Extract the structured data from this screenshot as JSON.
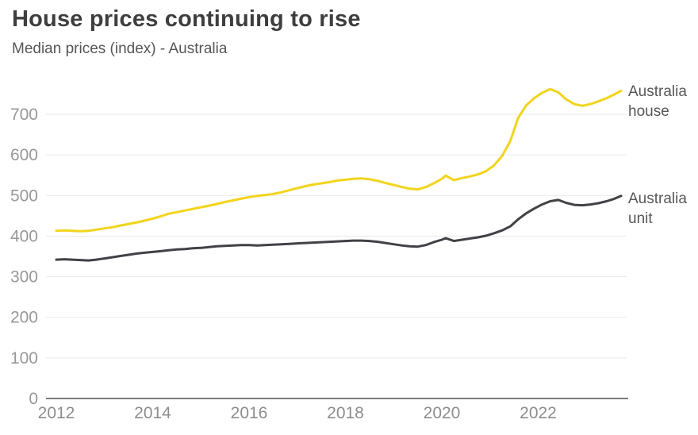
{
  "header": {
    "title": "House prices continuing to rise",
    "subtitle": "Median prices (index) - Australia"
  },
  "colors": {
    "title_text": "#3e3e40",
    "subtitle_text": "#565658",
    "grid_line": "#e9e9e9",
    "baseline": "#7d7d7d",
    "y_tick_text": "#989898",
    "x_tick_text": "#8d8d8d",
    "legend_text": "#58585a",
    "house_line": "#f2d41c",
    "unit_line": "#414246"
  },
  "chart_data": {
    "type": "line",
    "title": "House prices continuing to rise",
    "subtitle": "Median prices (index) - Australia",
    "xlabel": "",
    "ylabel": "Median price index",
    "grid": "horizontal",
    "legend_position": "right of line ends",
    "xlim": [
      2012,
      2023.85
    ],
    "ylim": [
      0,
      780
    ],
    "x_ticks": [
      2012,
      2014,
      2016,
      2018,
      2020,
      2022
    ],
    "y_ticks": [
      0,
      100,
      200,
      300,
      400,
      500,
      600,
      700
    ],
    "series": [
      {
        "name": "Australia house",
        "color": "#f2d41c",
        "points": [
          [
            2012,
            413
          ],
          [
            2012.17,
            414
          ],
          [
            2012.33,
            413
          ],
          [
            2012.5,
            412
          ],
          [
            2012.67,
            413
          ],
          [
            2012.83,
            416
          ],
          [
            2013,
            419
          ],
          [
            2013.17,
            422
          ],
          [
            2013.33,
            426
          ],
          [
            2013.5,
            430
          ],
          [
            2013.67,
            434
          ],
          [
            2013.83,
            438
          ],
          [
            2014,
            443
          ],
          [
            2014.17,
            449
          ],
          [
            2014.33,
            455
          ],
          [
            2014.5,
            459
          ],
          [
            2014.67,
            463
          ],
          [
            2014.83,
            467
          ],
          [
            2015,
            471
          ],
          [
            2015.17,
            475
          ],
          [
            2015.33,
            479
          ],
          [
            2015.5,
            484
          ],
          [
            2015.67,
            488
          ],
          [
            2015.83,
            492
          ],
          [
            2016,
            496
          ],
          [
            2016.17,
            499
          ],
          [
            2016.33,
            501
          ],
          [
            2016.5,
            504
          ],
          [
            2016.67,
            508
          ],
          [
            2016.83,
            513
          ],
          [
            2017,
            518
          ],
          [
            2017.17,
            523
          ],
          [
            2017.33,
            527
          ],
          [
            2017.5,
            530
          ],
          [
            2017.67,
            533
          ],
          [
            2017.83,
            537
          ],
          [
            2018,
            539
          ],
          [
            2018.17,
            541
          ],
          [
            2018.33,
            542
          ],
          [
            2018.5,
            540
          ],
          [
            2018.67,
            536
          ],
          [
            2018.83,
            531
          ],
          [
            2019,
            526
          ],
          [
            2019.17,
            521
          ],
          [
            2019.33,
            517
          ],
          [
            2019.5,
            515
          ],
          [
            2019.67,
            521
          ],
          [
            2019.83,
            530
          ],
          [
            2020,
            541
          ],
          [
            2020.08,
            549
          ],
          [
            2020.25,
            538
          ],
          [
            2020.42,
            543
          ],
          [
            2020.58,
            547
          ],
          [
            2020.75,
            552
          ],
          [
            2020.92,
            560
          ],
          [
            2021.08,
            574
          ],
          [
            2021.25,
            597
          ],
          [
            2021.42,
            634
          ],
          [
            2021.58,
            690
          ],
          [
            2021.75,
            722
          ],
          [
            2021.92,
            740
          ],
          [
            2022.08,
            753
          ],
          [
            2022.25,
            762
          ],
          [
            2022.42,
            754
          ],
          [
            2022.58,
            737
          ],
          [
            2022.75,
            725
          ],
          [
            2022.92,
            721
          ],
          [
            2023.08,
            725
          ],
          [
            2023.25,
            732
          ],
          [
            2023.42,
            740
          ],
          [
            2023.58,
            749
          ],
          [
            2023.72,
            758
          ]
        ]
      },
      {
        "name": "Australia unit",
        "color": "#414246",
        "points": [
          [
            2012,
            342
          ],
          [
            2012.17,
            343
          ],
          [
            2012.33,
            342
          ],
          [
            2012.5,
            341
          ],
          [
            2012.67,
            340
          ],
          [
            2012.83,
            342
          ],
          [
            2013,
            345
          ],
          [
            2013.17,
            348
          ],
          [
            2013.33,
            351
          ],
          [
            2013.5,
            354
          ],
          [
            2013.67,
            357
          ],
          [
            2013.83,
            359
          ],
          [
            2014,
            361
          ],
          [
            2014.17,
            363
          ],
          [
            2014.33,
            365
          ],
          [
            2014.5,
            367
          ],
          [
            2014.67,
            368
          ],
          [
            2014.83,
            370
          ],
          [
            2015,
            371
          ],
          [
            2015.17,
            373
          ],
          [
            2015.33,
            375
          ],
          [
            2015.5,
            376
          ],
          [
            2015.67,
            377
          ],
          [
            2015.83,
            378
          ],
          [
            2016,
            378
          ],
          [
            2016.17,
            377
          ],
          [
            2016.33,
            378
          ],
          [
            2016.5,
            379
          ],
          [
            2016.67,
            380
          ],
          [
            2016.83,
            381
          ],
          [
            2017,
            382
          ],
          [
            2017.17,
            383
          ],
          [
            2017.33,
            384
          ],
          [
            2017.5,
            385
          ],
          [
            2017.67,
            386
          ],
          [
            2017.83,
            387
          ],
          [
            2018,
            388
          ],
          [
            2018.17,
            389
          ],
          [
            2018.33,
            389
          ],
          [
            2018.5,
            388
          ],
          [
            2018.67,
            386
          ],
          [
            2018.83,
            383
          ],
          [
            2019,
            380
          ],
          [
            2019.17,
            377
          ],
          [
            2019.33,
            375
          ],
          [
            2019.5,
            374
          ],
          [
            2019.67,
            378
          ],
          [
            2019.83,
            385
          ],
          [
            2020,
            391
          ],
          [
            2020.08,
            395
          ],
          [
            2020.25,
            388
          ],
          [
            2020.42,
            391
          ],
          [
            2020.58,
            394
          ],
          [
            2020.75,
            397
          ],
          [
            2020.92,
            401
          ],
          [
            2021.08,
            407
          ],
          [
            2021.25,
            414
          ],
          [
            2021.42,
            424
          ],
          [
            2021.58,
            441
          ],
          [
            2021.75,
            456
          ],
          [
            2021.92,
            468
          ],
          [
            2022.08,
            478
          ],
          [
            2022.25,
            486
          ],
          [
            2022.42,
            489
          ],
          [
            2022.58,
            482
          ],
          [
            2022.75,
            477
          ],
          [
            2022.92,
            476
          ],
          [
            2023.08,
            478
          ],
          [
            2023.25,
            481
          ],
          [
            2023.42,
            486
          ],
          [
            2023.58,
            492
          ],
          [
            2023.72,
            499
          ]
        ]
      }
    ]
  }
}
